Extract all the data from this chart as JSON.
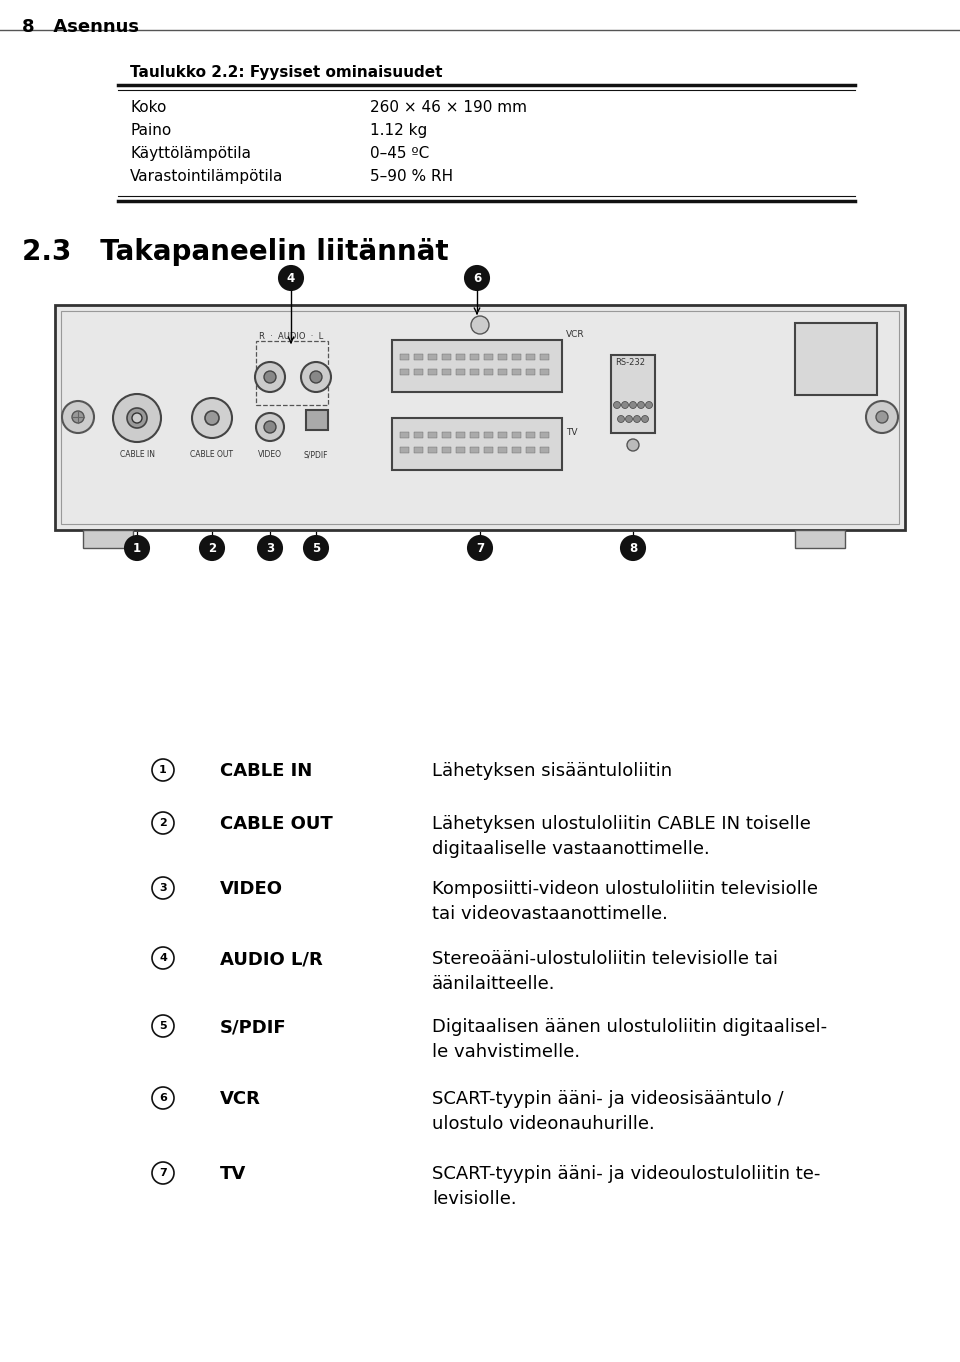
{
  "page_header": "8   Asennus",
  "table_title": "Taulukko 2.2: Fyysiset ominaisuudet",
  "table_rows": [
    [
      "Koko",
      "260 × 46 × 190 mm"
    ],
    [
      "Paino",
      "1.12 kg"
    ],
    [
      "Käyttölämpötila",
      "0–45 ºC"
    ],
    [
      "Varastointilämpötila",
      "5–90 % RH"
    ]
  ],
  "section_header": "2.3   Takapaneelin liitännät",
  "items": [
    {
      "num": "1",
      "label": "CABLE IN",
      "desc": "Lähetyksen sisääntuloliitin"
    },
    {
      "num": "2",
      "label": "CABLE OUT",
      "desc": "Lähetyksen ulostuloliitin CABLE IN toiselle\ndigitaaliselle vastaanottimelle."
    },
    {
      "num": "3",
      "label": "VIDEO",
      "desc": "Komposiitti-videon ulostuloliitin televisiolle\ntai videovastaanottimelle."
    },
    {
      "num": "4",
      "label": "AUDIO L/R",
      "desc": "Stereoääni-ulostuloliitin televisiolle tai\näänilaitteelle."
    },
    {
      "num": "5",
      "label": "S/PDIF",
      "desc": "Digitaalisen äänen ulostuloliitin digitaalisel-\nle vahvistimelle."
    },
    {
      "num": "6",
      "label": "VCR",
      "desc": "SCART-tyypin ääni- ja videosisääntulo /\nulostulo videonauhurille."
    },
    {
      "num": "7",
      "label": "TV",
      "desc": "SCART-tyypin ääni- ja videoulostuloliitin te-\nlevisiolle."
    }
  ],
  "bg_color": "#ffffff",
  "text_color": "#000000",
  "panel_bg": "#f0f0f0",
  "panel_edge": "#444444"
}
